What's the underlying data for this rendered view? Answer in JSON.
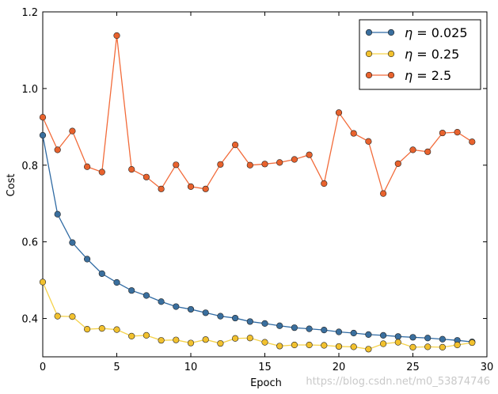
{
  "chart_data": {
    "type": "line",
    "title": "",
    "xlabel": "Epoch",
    "ylabel": "Cost",
    "xlim": [
      0,
      30
    ],
    "ylim": [
      0.3,
      1.2
    ],
    "xticks": [
      0,
      5,
      10,
      15,
      20,
      25,
      30
    ],
    "yticks": [
      0.4,
      0.6,
      0.8,
      1.0,
      1.2
    ],
    "ytick_labels": [
      "0.4",
      "0.6",
      "0.8",
      "1.0",
      "1.2"
    ],
    "grid": false,
    "legend_position": "top-right",
    "x": [
      0,
      1,
      2,
      3,
      4,
      5,
      6,
      7,
      8,
      9,
      10,
      11,
      12,
      13,
      14,
      15,
      16,
      17,
      18,
      19,
      20,
      21,
      22,
      23,
      24,
      25,
      26,
      27,
      28,
      29
    ],
    "series": [
      {
        "name": "η = 0.025",
        "legend_symbol": "η",
        "legend_value": "= 0.025",
        "color": "#2f6aa3",
        "marker_fill": "#3a6f9e",
        "values": [
          0.878,
          0.672,
          0.598,
          0.555,
          0.517,
          0.494,
          0.473,
          0.46,
          0.444,
          0.431,
          0.424,
          0.415,
          0.406,
          0.401,
          0.392,
          0.387,
          0.381,
          0.376,
          0.373,
          0.37,
          0.365,
          0.362,
          0.358,
          0.356,
          0.353,
          0.351,
          0.349,
          0.346,
          0.343,
          0.339
        ]
      },
      {
        "name": "η = 0.25",
        "legend_symbol": "η",
        "legend_value": "= 0.25",
        "color": "#f5d24a",
        "marker_fill": "#f2c12e",
        "values": [
          0.495,
          0.406,
          0.405,
          0.372,
          0.374,
          0.371,
          0.354,
          0.356,
          0.343,
          0.344,
          0.336,
          0.345,
          0.335,
          0.348,
          0.349,
          0.338,
          0.328,
          0.331,
          0.331,
          0.33,
          0.327,
          0.326,
          0.32,
          0.334,
          0.338,
          0.325,
          0.326,
          0.325,
          0.331,
          0.337
        ]
      },
      {
        "name": "η = 2.5",
        "legend_symbol": "η",
        "legend_value": "= 2.5",
        "color": "#f26b3a",
        "marker_fill": "#e8622d",
        "values": [
          0.925,
          0.84,
          0.889,
          0.796,
          0.782,
          1.138,
          0.789,
          0.769,
          0.738,
          0.801,
          0.744,
          0.738,
          0.802,
          0.853,
          0.8,
          0.803,
          0.807,
          0.815,
          0.827,
          0.752,
          0.937,
          0.883,
          0.862,
          0.726,
          0.804,
          0.84,
          0.835,
          0.884,
          0.886,
          0.861
        ]
      }
    ]
  },
  "watermark": "https://blog.csdn.net/m0_53874746"
}
